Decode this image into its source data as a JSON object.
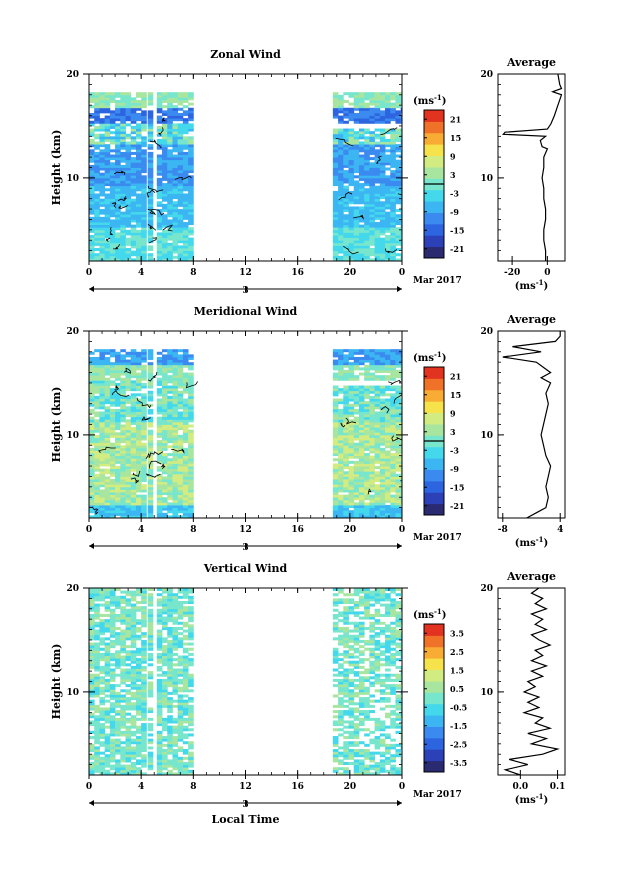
{
  "chart_data": [
    {
      "type": "heatmap",
      "title": "Zonal Wind",
      "ylabel": "Height (km)",
      "xlabel": "",
      "ylim": [
        2,
        20
      ],
      "y_ticks": [
        "20",
        "10"
      ],
      "xlim": [
        0,
        24
      ],
      "x_ticks": [
        "0",
        "4",
        "8",
        "12",
        "16",
        "20",
        "0"
      ],
      "date_day": "3",
      "date_label": "Mar 2017",
      "data_hours": [
        [
          0,
          4.1
        ],
        [
          4.5,
          4.7
        ],
        [
          5.2,
          8.0
        ],
        [
          18.7,
          24
        ]
      ],
      "zero_line_km": 10.0,
      "colorbar": {
        "unit": "(ms",
        "unit_sup": "-1",
        "unit_close": ")",
        "labels": [
          "21",
          "15",
          "9",
          "3",
          "-3",
          "-9",
          "-15",
          "-21"
        ],
        "range": [
          -24,
          24
        ],
        "marker_value": 0
      },
      "average_panel": {
        "title": "Average",
        "x_ticks": [
          "-20",
          "0"
        ],
        "xlim": [
          -28,
          10
        ],
        "y_ticks": [
          "20",
          "10"
        ],
        "unit": "(ms",
        "unit_sup": "-1",
        "unit_close": ")",
        "profile": [
          [
            2,
            -1
          ],
          [
            3,
            -1
          ],
          [
            4,
            -2
          ],
          [
            5,
            -2
          ],
          [
            6,
            -1
          ],
          [
            7,
            -1
          ],
          [
            8,
            -2
          ],
          [
            9,
            -2
          ],
          [
            10,
            -3
          ],
          [
            11,
            -2
          ],
          [
            12,
            -2
          ],
          [
            12.8,
            0
          ],
          [
            13,
            -3
          ],
          [
            13.6,
            -4
          ],
          [
            14,
            -1
          ],
          [
            14.2,
            -25
          ],
          [
            14.4,
            -24
          ],
          [
            14.7,
            0
          ],
          [
            15.2,
            2
          ],
          [
            16,
            4
          ],
          [
            17,
            6
          ],
          [
            18,
            8
          ],
          [
            18.3,
            3
          ],
          [
            18.6,
            8
          ],
          [
            19,
            7
          ],
          [
            20,
            6
          ]
        ]
      }
    },
    {
      "type": "heatmap",
      "title": "Meridional Wind",
      "ylabel": "Height (km)",
      "xlabel": "",
      "ylim": [
        2,
        20
      ],
      "y_ticks": [
        "20",
        "10"
      ],
      "xlim": [
        0,
        24
      ],
      "x_ticks": [
        "0",
        "4",
        "8",
        "12",
        "16",
        "20",
        "0"
      ],
      "date_day": "3",
      "date_label": "Mar 2017",
      "data_hours": [
        [
          0,
          4.1
        ],
        [
          4.5,
          4.7
        ],
        [
          5.2,
          8.0
        ],
        [
          18.7,
          24
        ]
      ],
      "zero_line_km": 10.0,
      "colorbar": {
        "unit": "(ms",
        "unit_sup": "-1",
        "unit_close": ")",
        "labels": [
          "21",
          "15",
          "9",
          "3",
          "-3",
          "-9",
          "-15",
          "-21"
        ],
        "range": [
          -24,
          24
        ],
        "marker_value": 0
      },
      "average_panel": {
        "title": "Average",
        "x_ticks": [
          "-8",
          "4"
        ],
        "xlim": [
          -9,
          5
        ],
        "y_ticks": [
          "20",
          "10"
        ],
        "unit": "(ms",
        "unit_sup": "-1",
        "unit_close": ")",
        "profile": [
          [
            2,
            -3
          ],
          [
            2.5,
            -1
          ],
          [
            3,
            1
          ],
          [
            4,
            1.5
          ],
          [
            5,
            1
          ],
          [
            6,
            1.5
          ],
          [
            7,
            2
          ],
          [
            8,
            1
          ],
          [
            9,
            0.5
          ],
          [
            10,
            0
          ],
          [
            11,
            0.5
          ],
          [
            12,
            1
          ],
          [
            13,
            1.5
          ],
          [
            14,
            1
          ],
          [
            15,
            2
          ],
          [
            15.5,
            0
          ],
          [
            16,
            2
          ],
          [
            17,
            -1
          ],
          [
            17.5,
            -8
          ],
          [
            18,
            0
          ],
          [
            18.5,
            -6
          ],
          [
            19,
            3
          ],
          [
            19.5,
            4
          ],
          [
            20,
            4
          ]
        ]
      }
    },
    {
      "type": "heatmap",
      "title": "Vertical Wind",
      "ylabel": "Height (km)",
      "xlabel": "Local Time",
      "ylim": [
        2,
        20
      ],
      "y_ticks": [
        "20",
        "10"
      ],
      "xlim": [
        0,
        24
      ],
      "x_ticks": [
        "0",
        "4",
        "8",
        "12",
        "16",
        "20",
        "0"
      ],
      "date_day": "3",
      "date_label": "Mar 2017",
      "data_hours": [
        [
          0,
          4.1
        ],
        [
          4.5,
          4.7
        ],
        [
          5.2,
          8.0
        ],
        [
          18.7,
          24
        ]
      ],
      "colorbar": {
        "unit": "(ms",
        "unit_sup": "-1",
        "unit_close": ")",
        "labels": [
          "3.5",
          "2.5",
          "1.5",
          "0.5",
          "-0.5",
          "-1.5",
          "-2.5",
          "-3.5"
        ],
        "range": [
          -4,
          4
        ]
      },
      "average_panel": {
        "title": "Average",
        "x_ticks": [
          "0.0",
          "0.1"
        ],
        "xlim": [
          -0.06,
          0.12
        ],
        "y_ticks": [
          "20",
          "10"
        ],
        "unit": "(ms",
        "unit_sup": "-1",
        "unit_close": ")",
        "profile": [
          [
            2,
            0.0
          ],
          [
            2.5,
            -0.04
          ],
          [
            3,
            0.02
          ],
          [
            3.5,
            -0.03
          ],
          [
            4,
            0.06
          ],
          [
            4.5,
            0.1
          ],
          [
            5,
            0.03
          ],
          [
            5.5,
            0.07
          ],
          [
            6,
            0.02
          ],
          [
            6.5,
            0.08
          ],
          [
            7,
            0.04
          ],
          [
            7.5,
            0.06
          ],
          [
            8,
            0.01
          ],
          [
            8.5,
            0.05
          ],
          [
            9,
            0.02
          ],
          [
            9.5,
            0.05
          ],
          [
            10,
            0.01
          ],
          [
            10.5,
            0.04
          ],
          [
            11,
            0.02
          ],
          [
            11.5,
            0.06
          ],
          [
            12,
            0.03
          ],
          [
            12.5,
            0.07
          ],
          [
            13,
            0.03
          ],
          [
            13.5,
            0.06
          ],
          [
            14,
            0.04
          ],
          [
            14.5,
            0.08
          ],
          [
            15,
            0.05
          ],
          [
            15.5,
            0.03
          ],
          [
            16,
            0.07
          ],
          [
            16.5,
            0.04
          ],
          [
            17,
            0.06
          ],
          [
            17.5,
            0.03
          ],
          [
            18,
            0.07
          ],
          [
            18.5,
            0.04
          ],
          [
            19,
            0.06
          ],
          [
            19.5,
            0.03
          ],
          [
            20,
            0.05
          ]
        ]
      }
    }
  ],
  "colors": {
    "palette": [
      "#2a2a70",
      "#2c40b8",
      "#2d64e0",
      "#3b8af0",
      "#3cb6f2",
      "#44d8ec",
      "#78e6cc",
      "#a8e6a0",
      "#d2ec82",
      "#f6e24a",
      "#f8ac34",
      "#f07228",
      "#e23220"
    ]
  }
}
